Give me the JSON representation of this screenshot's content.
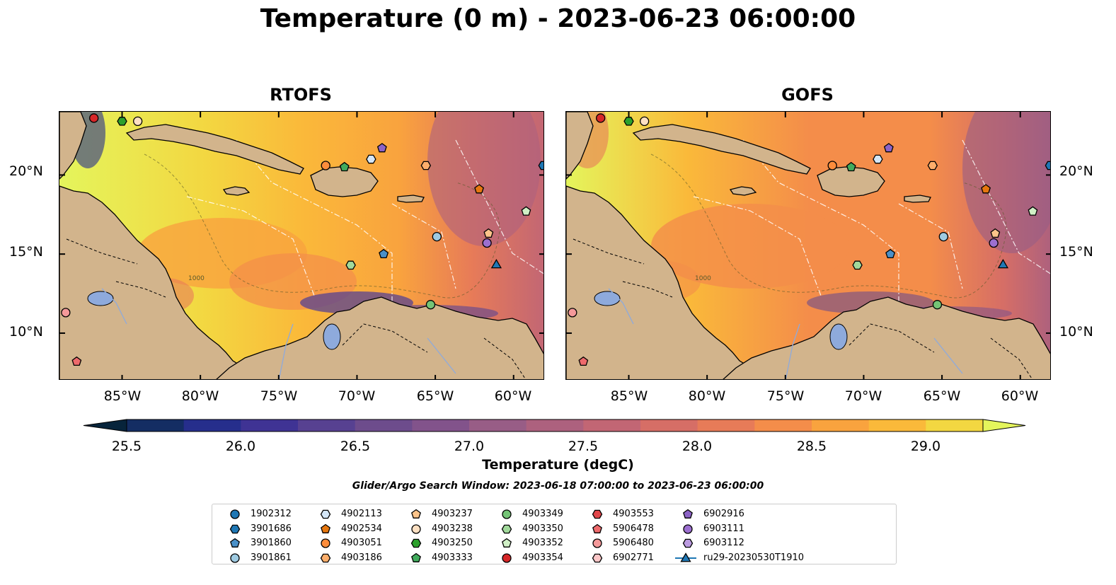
{
  "title": "Temperature (0 m) - 2023-06-23 06:00:00",
  "panels": [
    {
      "title": "RTOFS"
    },
    {
      "title": "GOFS"
    }
  ],
  "map": {
    "lon_range": [
      -89,
      -58
    ],
    "lat_range": [
      7,
      24
    ],
    "lat_labels": [
      "20°N",
      "15°N",
      "10°N"
    ],
    "lon_labels": [
      "85°W",
      "80°W",
      "75°W",
      "70°W",
      "65°W",
      "60°W"
    ],
    "land_color": "#d2b48c",
    "lake_color": "#8eaadc",
    "contour_label": "1000"
  },
  "colorbar": {
    "label": "Temperature (degC)",
    "ticks": [
      "25.5",
      "26.0",
      "26.5",
      "27.0",
      "27.5",
      "28.0",
      "28.5",
      "29.0"
    ],
    "range": [
      25.25,
      29.25
    ],
    "colors": [
      "#07243b",
      "#142d63",
      "#262e8c",
      "#3f3394",
      "#574191",
      "#6d4c8c",
      "#82538b",
      "#985d86",
      "#ad617e",
      "#c26674",
      "#d66e66",
      "#e77b58",
      "#f48d4a",
      "#f9a33e",
      "#fab93a",
      "#f3d741",
      "#e4f55c"
    ]
  },
  "search_window": "Glider/Argo Search Window: 2023-06-18 07:00:00 to 2023-06-23 06:00:00",
  "legend": [
    {
      "label": "1902312",
      "marker": "circle",
      "color": "#1f77b4"
    },
    {
      "label": "3901686",
      "marker": "hexagon",
      "color": "#1f77b4"
    },
    {
      "label": "3901860",
      "marker": "pentagon",
      "color": "#4a90c8"
    },
    {
      "label": "3901861",
      "marker": "circle",
      "color": "#9ecae1"
    },
    {
      "label": "4902113",
      "marker": "hexagon",
      "color": "#d4e6f7"
    },
    {
      "label": "4902534",
      "marker": "pentagon",
      "color": "#e6770f"
    },
    {
      "label": "4903051",
      "marker": "circle",
      "color": "#fd8d3c"
    },
    {
      "label": "4903186",
      "marker": "hexagon",
      "color": "#fdae6b"
    },
    {
      "label": "4903237",
      "marker": "pentagon",
      "color": "#fdc48a"
    },
    {
      "label": "4903238",
      "marker": "circle",
      "color": "#fde0c2"
    },
    {
      "label": "4903250",
      "marker": "hexagon",
      "color": "#2ca02c"
    },
    {
      "label": "4903333",
      "marker": "pentagon",
      "color": "#41ab5d"
    },
    {
      "label": "4903349",
      "marker": "circle",
      "color": "#74c476"
    },
    {
      "label": "4903350",
      "marker": "hexagon",
      "color": "#a1d99b"
    },
    {
      "label": "4903352",
      "marker": "pentagon",
      "color": "#d0f0c6"
    },
    {
      "label": "4903354",
      "marker": "circle",
      "color": "#d62728"
    },
    {
      "label": "4903553",
      "marker": "hexagon",
      "color": "#e0464a"
    },
    {
      "label": "5906478",
      "marker": "pentagon",
      "color": "#ee6a6c"
    },
    {
      "label": "5906480",
      "marker": "circle",
      "color": "#f4999a"
    },
    {
      "label": "6902771",
      "marker": "hexagon",
      "color": "#fbc6c7"
    },
    {
      "label": "6902916",
      "marker": "pentagon",
      "color": "#8c63c6"
    },
    {
      "label": "6903111",
      "marker": "circle",
      "color": "#9c6fd0"
    },
    {
      "label": "6903112",
      "marker": "hexagon",
      "color": "#bb9be0"
    },
    {
      "label": "ru29-20230530T1910",
      "marker": "triangle-line",
      "color": "#1f77b4"
    }
  ],
  "floats": [
    {
      "id": "4903354",
      "lon": -86.8,
      "lat": 23.6
    },
    {
      "id": "4903250",
      "lon": -85.0,
      "lat": 23.4
    },
    {
      "id": "4903238",
      "lon": -84.0,
      "lat": 23.4
    },
    {
      "id": "4903051",
      "lon": -72.0,
      "lat": 20.6
    },
    {
      "id": "4903333",
      "lon": -70.8,
      "lat": 20.5
    },
    {
      "id": "4902113",
      "lon": -69.1,
      "lat": 21.0
    },
    {
      "id": "6902916",
      "lon": -68.4,
      "lat": 21.7
    },
    {
      "id": "4903186",
      "lon": -65.6,
      "lat": 20.6
    },
    {
      "id": "3901686",
      "lon": -58.1,
      "lat": 20.6
    },
    {
      "id": "4902534",
      "lon": -62.2,
      "lat": 19.1
    },
    {
      "id": "4903352",
      "lon": -59.2,
      "lat": 17.7
    },
    {
      "id": "3901861",
      "lon": -64.9,
      "lat": 16.1
    },
    {
      "id": "4903237",
      "lon": -61.6,
      "lat": 16.3
    },
    {
      "id": "6903111",
      "lon": -61.7,
      "lat": 15.7
    },
    {
      "id": "3901860",
      "lon": -68.3,
      "lat": 15.0
    },
    {
      "id": "4903350",
      "lon": -70.4,
      "lat": 14.3
    },
    {
      "id": "ru29-20230530T1910",
      "lon": -61.1,
      "lat": 14.3
    },
    {
      "id": "4903349",
      "lon": -65.3,
      "lat": 11.8
    },
    {
      "id": "5906480",
      "lon": -88.6,
      "lat": 11.3
    },
    {
      "id": "5906478",
      "lon": -87.9,
      "lat": 8.2
    }
  ]
}
